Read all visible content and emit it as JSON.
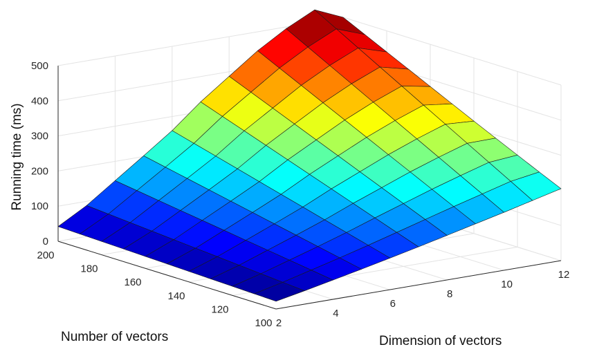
{
  "chart_data": {
    "type": "surface",
    "title": "",
    "xlabel": "Dimension of vectors",
    "ylabel": "Number of vectors",
    "zlabel": "Running time (ms)",
    "x_ticks": [
      "2",
      "4",
      "6",
      "8",
      "10",
      "12"
    ],
    "y_ticks": [
      "100",
      "120",
      "140",
      "160",
      "180",
      "200"
    ],
    "z_ticks": [
      "0",
      "100",
      "200",
      "300",
      "400",
      "500"
    ],
    "xlim": [
      2,
      12
    ],
    "ylim": [
      100,
      200
    ],
    "zlim": [
      0,
      500
    ],
    "grid": true,
    "colormap": "jet",
    "x": [
      2,
      3,
      4,
      5,
      6,
      7,
      8,
      9,
      10,
      11,
      12
    ],
    "y": [
      100,
      110,
      120,
      130,
      140,
      150,
      160,
      170,
      180,
      190,
      200
    ],
    "z": [
      [
        22,
        38,
        55,
        72,
        90,
        108,
        127,
        146,
        165,
        185,
        205
      ],
      [
        24,
        43,
        64,
        85,
        107,
        130,
        153,
        176,
        198,
        220,
        233
      ],
      [
        26,
        48,
        73,
        98,
        124,
        152,
        179,
        206,
        231,
        255,
        262
      ],
      [
        28,
        53,
        82,
        111,
        141,
        174,
        205,
        236,
        264,
        290,
        291
      ],
      [
        30,
        58,
        91,
        124,
        158,
        196,
        231,
        266,
        297,
        325,
        320
      ],
      [
        32,
        63,
        100,
        137,
        175,
        218,
        257,
        296,
        330,
        360,
        350
      ],
      [
        34,
        68,
        109,
        150,
        192,
        240,
        283,
        326,
        363,
        395,
        380
      ],
      [
        36,
        73,
        118,
        163,
        209,
        262,
        309,
        356,
        396,
        430,
        410
      ],
      [
        38,
        78,
        127,
        176,
        226,
        284,
        335,
        386,
        429,
        465,
        440
      ],
      [
        40,
        83,
        136,
        189,
        243,
        306,
        361,
        416,
        462,
        500,
        470
      ],
      [
        42,
        88,
        145,
        202,
        260,
        328,
        387,
        446,
        495,
        535,
        500
      ]
    ]
  }
}
